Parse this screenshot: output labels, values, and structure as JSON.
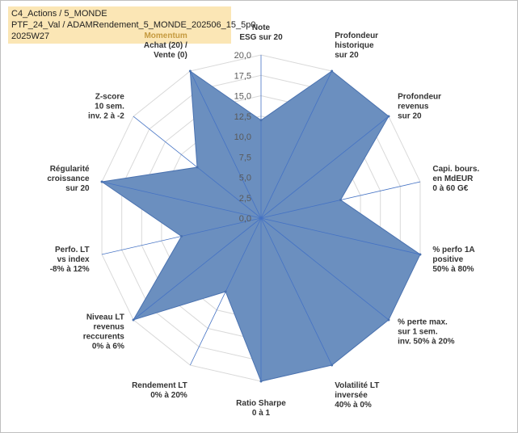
{
  "title_box": {
    "line1": "C4_Actions / 5_MONDE",
    "line2": "PTF_24_Val / ADAMRendement_5_MONDE_202506_15_5p0",
    "line3": "2025W27"
  },
  "chart_data": {
    "type": "radar",
    "rmax": 20,
    "rticks": [
      "0,0",
      "2,5",
      "5,0",
      "7,5",
      "10,0",
      "12,5",
      "15,0",
      "17,5",
      "20,0"
    ],
    "axes": [
      [
        "Note",
        "ESG sur 20"
      ],
      [
        "Profondeur",
        "historique",
        "sur 20"
      ],
      [
        "Profondeur",
        "revenus",
        "sur 20"
      ],
      [
        "Capi. bours.",
        "en MdEUR",
        "0 à 60 G€"
      ],
      [
        "% perfo 1A",
        "positive",
        "50% à 80%"
      ],
      [
        "% perte max.",
        "sur 1 sem.",
        "inv. 50% à 20%"
      ],
      [
        "Volatilité LT",
        "inversée",
        "40% à 0%"
      ],
      [
        "Ratio Sharpe",
        "0 à 1"
      ],
      [
        "Rendement LT",
        "0% à 20%"
      ],
      [
        "Niveau LT",
        "revenus",
        "reccurents",
        "0% à 6%"
      ],
      [
        "Perfo. LT",
        "vs index",
        "-8% à 12%"
      ],
      [
        "Régularité",
        "croissance",
        "sur 20"
      ],
      [
        "Z-score",
        "10 sem.",
        "inv. 2 à -2"
      ],
      [
        "Momentum",
        "Achat (20) /",
        "Vente (0)"
      ]
    ],
    "values": [
      12,
      20,
      20,
      10,
      20,
      20,
      20,
      20,
      10,
      20,
      10,
      20,
      10,
      20
    ],
    "colors": {
      "fill": "#6b8fbf",
      "stroke": "#4a72b0",
      "grid": "#d9d9d9",
      "spoke": "#4472c4",
      "momentum": "#c59a3f"
    }
  }
}
